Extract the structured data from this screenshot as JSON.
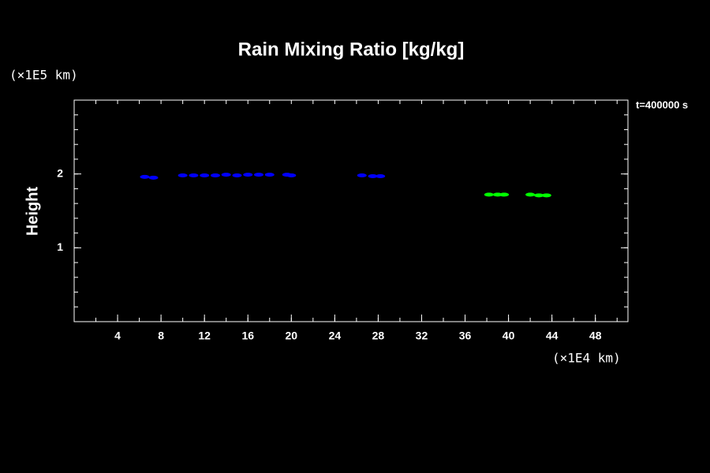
{
  "chart_data": {
    "type": "scatter",
    "title": "Rain Mixing Ratio [kg/kg]",
    "y_label": "Height",
    "y_unit": "(×1E5 km)",
    "x_unit": "(×1E4 km)",
    "annotation": "t=400000 s",
    "xlim": [
      0,
      51
    ],
    "ylim": [
      0,
      3
    ],
    "xticks": [
      4,
      8,
      12,
      16,
      20,
      24,
      28,
      32,
      36,
      40,
      44,
      48
    ],
    "yticks": [
      1,
      2
    ],
    "series": [
      {
        "color": "#0000ff",
        "x": [
          6.5,
          7.3,
          10,
          11,
          12,
          13,
          14,
          15,
          16,
          17,
          18,
          19.6,
          20,
          26.5,
          27.5,
          28.2
        ],
        "values": [
          1.96,
          1.95,
          1.98,
          1.98,
          1.98,
          1.98,
          1.99,
          1.98,
          1.99,
          1.99,
          1.99,
          1.99,
          1.98,
          1.98,
          1.97,
          1.97
        ]
      },
      {
        "color": "#00ff00",
        "x": [
          38.2,
          39,
          39.6,
          42,
          42.8,
          43.5
        ],
        "values": [
          1.72,
          1.72,
          1.72,
          1.72,
          1.71,
          1.71
        ]
      }
    ]
  }
}
